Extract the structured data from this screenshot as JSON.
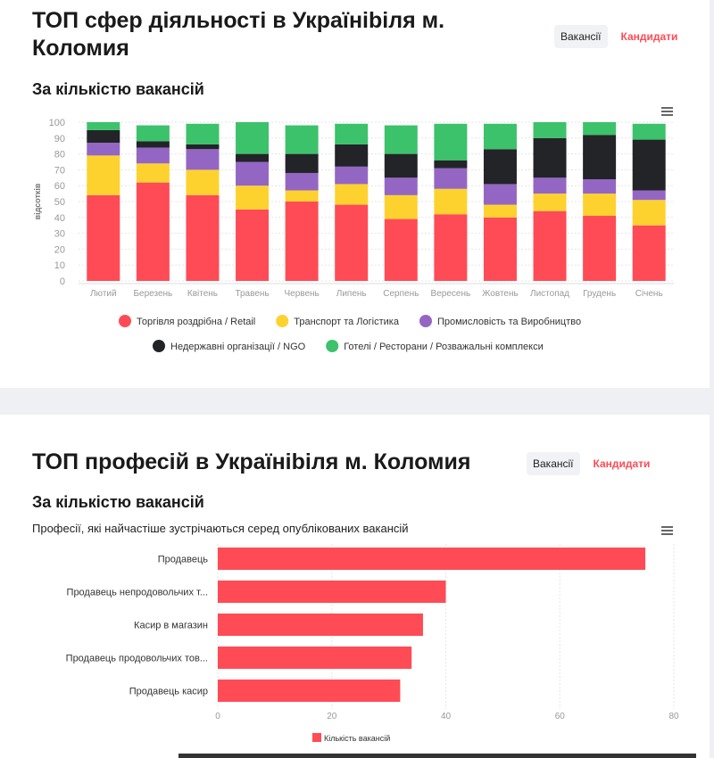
{
  "section1": {
    "title": "ТОП сфер діяльності в Україніbіля м. Коломия",
    "subtitle": "За кількістю вакансій",
    "toggle": {
      "vacancies": "Вакансії",
      "candidates": "Кандидати"
    }
  },
  "section2": {
    "title": "ТОП професій в Україніbіля м. Коломия",
    "subtitle": "За кількістю вакансій",
    "description": "Професії, які найчастіше зустрічаються серед опублікованих вакансій",
    "toggle": {
      "vacancies": "Вакансії",
      "candidates": "Кандидати"
    }
  },
  "chart_data": [
    {
      "type": "bar",
      "stacked": true,
      "ylabel": "відсотків",
      "ylim": [
        0,
        100
      ],
      "yticks": [
        0,
        10,
        20,
        30,
        40,
        50,
        60,
        70,
        80,
        90,
        100
      ],
      "grid": true,
      "legend": "bottom",
      "categories": [
        "Лютий",
        "Березень",
        "Квітень",
        "Травень",
        "Червень",
        "Липень",
        "Серпень",
        "Вересень",
        "Жовтень",
        "Листопад",
        "Грудень",
        "Січень"
      ],
      "series": [
        {
          "name": "Торгівля роздрібна / Retail",
          "color": "#ff4b55",
          "values": [
            54,
            62,
            54,
            45,
            50,
            48,
            39,
            42,
            40,
            44,
            41,
            35
          ]
        },
        {
          "name": "Транспорт та Логістика",
          "color": "#fdd22f",
          "values": [
            25,
            12,
            16,
            15,
            7,
            13,
            15,
            16,
            8,
            11,
            14,
            16
          ]
        },
        {
          "name": "Промисловість та Виробництво",
          "color": "#9466c4",
          "values": [
            8,
            10,
            13,
            15,
            11,
            11,
            11,
            13,
            13,
            10,
            9,
            6
          ]
        },
        {
          "name": "Недержавні організації / NGO",
          "color": "#222428",
          "values": [
            8,
            4,
            3,
            5,
            12,
            14,
            15,
            5,
            22,
            25,
            28,
            32
          ]
        },
        {
          "name": "Готелі / Ресторани / Розважальні комплекси",
          "color": "#3cc26b",
          "values": [
            5,
            10,
            13,
            20,
            18,
            13,
            18,
            23,
            16,
            10,
            8,
            10
          ]
        }
      ]
    },
    {
      "type": "bar",
      "orientation": "horizontal",
      "xlim": [
        0,
        80
      ],
      "xticks": [
        0,
        20,
        40,
        60,
        80
      ],
      "grid": true,
      "legend": "bottom",
      "categories": [
        "Продавець",
        "Продавець непродовольчих т...",
        "Касир в магазин",
        "Продавець продовольчих тов...",
        "Продавець касир"
      ],
      "series": [
        {
          "name": "Кількість вакансій",
          "color": "#ff4b55",
          "values": [
            75,
            40,
            36,
            34,
            32
          ]
        }
      ]
    }
  ]
}
